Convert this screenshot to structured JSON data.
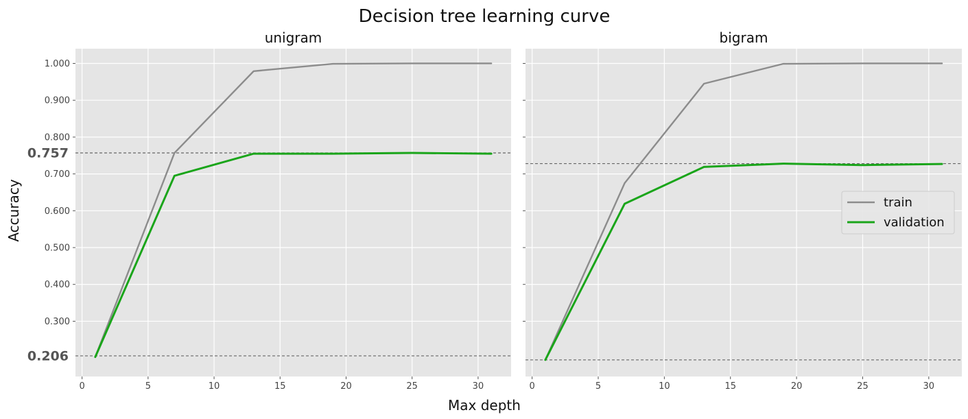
{
  "chart_data": {
    "type": "line",
    "title": "Decision tree learning curve",
    "xlabel": "Max depth",
    "ylabel": "Accuracy",
    "xlim": [
      -0.5,
      32.5
    ],
    "ylim": [
      0.15,
      1.04
    ],
    "xticks": [
      "0",
      "5",
      "10",
      "15",
      "20",
      "25",
      "30"
    ],
    "yticks": [
      "1.000",
      "0.900",
      "0.800",
      "0.700",
      "0.600",
      "0.500",
      "0.400",
      "0.300"
    ],
    "grid": true,
    "legend_placement": "center-right",
    "colors": {
      "train": "#8c8c8c",
      "validation": "#1aa51a",
      "reference": "#666666",
      "panel_bg": "#e5e5e5",
      "grid": "#ffffff"
    },
    "legend": [
      "train",
      "validation"
    ],
    "panels": [
      {
        "title": "unigram",
        "x": [
          1,
          7,
          13,
          19,
          25,
          31
        ],
        "series": [
          {
            "name": "train",
            "values": [
              0.203,
              0.757,
              0.979,
              0.999,
              1.0,
              1.0
            ]
          },
          {
            "name": "validation",
            "values": [
              0.203,
              0.695,
              0.755,
              0.755,
              0.757,
              0.755
            ]
          }
        ],
        "reference_lines": [
          0.757,
          0.206
        ],
        "reference_labels": [
          "0.757",
          "0.206"
        ]
      },
      {
        "title": "bigram",
        "x": [
          1,
          7,
          13,
          19,
          25,
          31
        ],
        "series": [
          {
            "name": "train",
            "values": [
              0.195,
              0.675,
              0.945,
              0.999,
              1.0,
              1.0
            ]
          },
          {
            "name": "validation",
            "values": [
              0.195,
              0.619,
              0.719,
              0.728,
              0.724,
              0.727
            ]
          }
        ],
        "reference_lines": [
          0.728,
          0.195
        ],
        "reference_labels": []
      }
    ]
  }
}
